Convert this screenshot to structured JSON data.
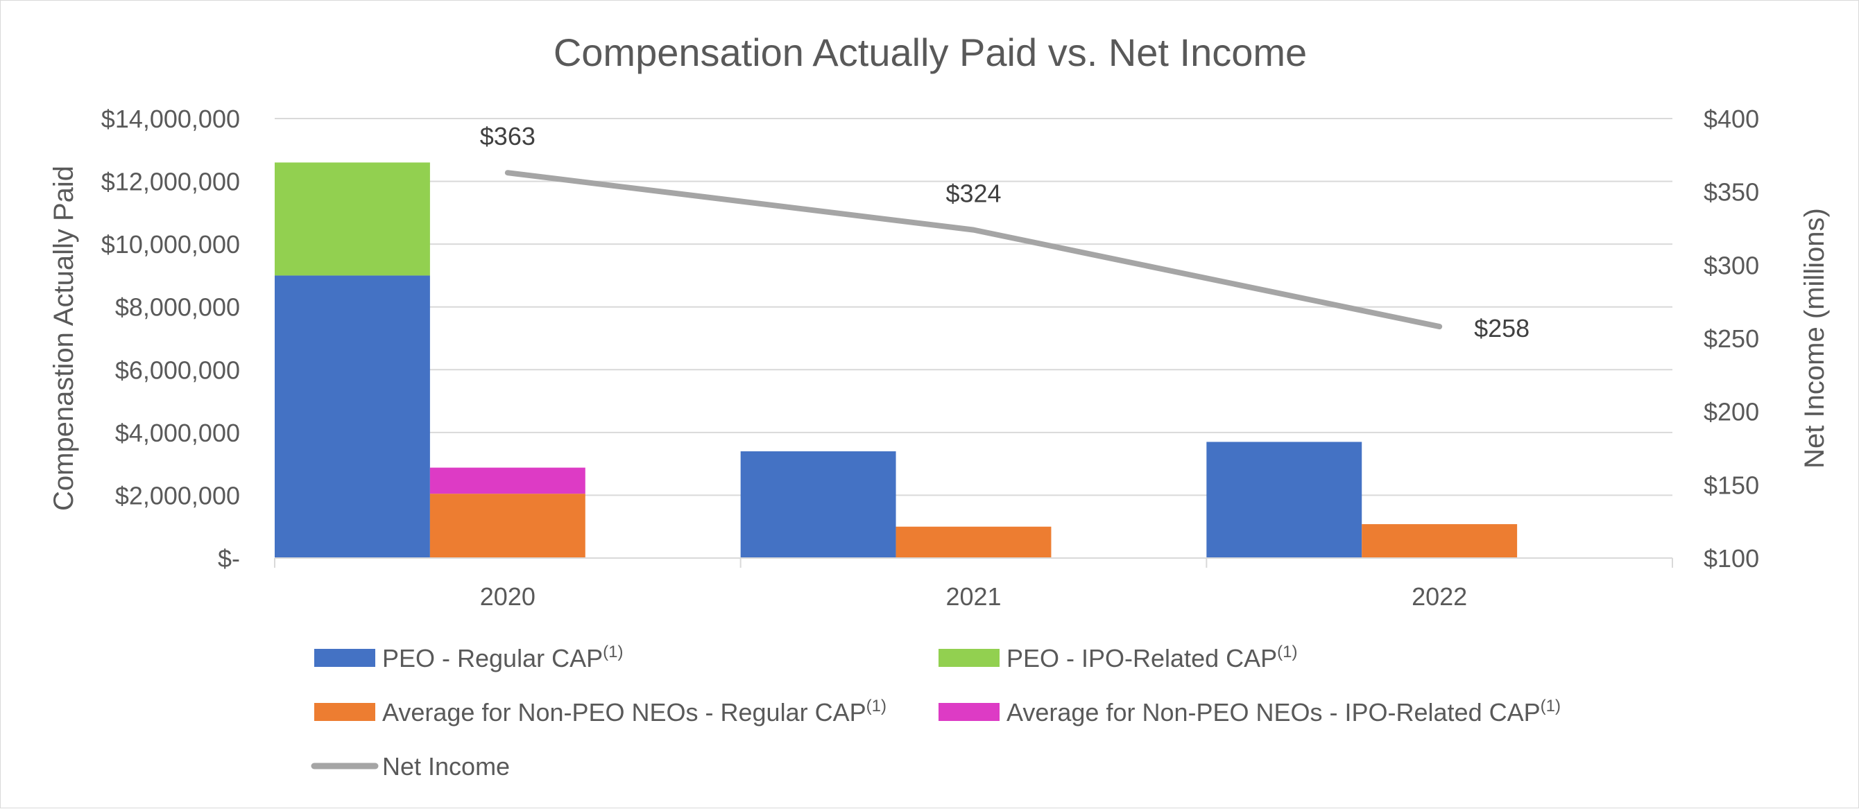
{
  "chart_data": {
    "type": "bar",
    "title": "Compensation Actually Paid vs. Net Income",
    "categories": [
      "2020",
      "2021",
      "2022"
    ],
    "ylabel": "Compenastion Actually Paid",
    "y2label": "Net Income (millions)",
    "ylim": [
      0,
      14000000
    ],
    "y2lim": [
      100,
      400
    ],
    "y_ticks": [
      {
        "value": 0,
        "label": "$-"
      },
      {
        "value": 2000000,
        "label": "$2,000,000"
      },
      {
        "value": 4000000,
        "label": "$4,000,000"
      },
      {
        "value": 6000000,
        "label": "$6,000,000"
      },
      {
        "value": 8000000,
        "label": "$8,000,000"
      },
      {
        "value": 10000000,
        "label": "$10,000,000"
      },
      {
        "value": 12000000,
        "label": "$12,000,000"
      },
      {
        "value": 14000000,
        "label": "$14,000,000"
      }
    ],
    "y2_ticks": [
      {
        "value": 100,
        "label": "$100"
      },
      {
        "value": 150,
        "label": "$150"
      },
      {
        "value": 200,
        "label": "$200"
      },
      {
        "value": 250,
        "label": "$250"
      },
      {
        "value": 300,
        "label": "$300"
      },
      {
        "value": 350,
        "label": "$350"
      },
      {
        "value": 400,
        "label": "$400"
      }
    ],
    "bar_groups": [
      {
        "name": "PEO",
        "segments": [
          {
            "series": "PEO - Regular CAP",
            "color": "#4472c4",
            "values": [
              9000000,
              3400000,
              3700000
            ]
          },
          {
            "series": "PEO - IPO-Related CAP",
            "color": "#92d050",
            "values": [
              3600000,
              0,
              0
            ]
          }
        ]
      },
      {
        "name": "Average for Non-PEO NEOs",
        "segments": [
          {
            "series": "Average for Non-PEO NEOs - Regular CAP",
            "color": "#ed7d31",
            "values": [
              2050000,
              1000000,
              1080000
            ]
          },
          {
            "series": "Average for Non-PEO NEOs - IPO-Related CAP",
            "color": "#dd3bc5",
            "values": [
              830000,
              0,
              0
            ]
          }
        ]
      }
    ],
    "line_series": {
      "name": "Net Income",
      "axis": "secondary",
      "color": "#a5a5a5",
      "values": [
        363,
        324,
        258
      ],
      "data_labels": [
        "$363",
        "$324",
        "$258"
      ]
    },
    "legend": {
      "position": "bottom",
      "items": [
        {
          "label": "PEO - Regular CAP",
          "sup": "(1)",
          "color": "#4472c4",
          "kind": "bar"
        },
        {
          "label": "PEO - IPO-Related CAP",
          "sup": "(1)",
          "color": "#92d050",
          "kind": "bar"
        },
        {
          "label": "Average for Non-PEO NEOs - Regular CAP",
          "sup": "(1)",
          "color": "#ed7d31",
          "kind": "bar"
        },
        {
          "label": "Average for Non-PEO NEOs - IPO-Related CAP",
          "sup": "(1)",
          "color": "#dd3bc5",
          "kind": "bar"
        },
        {
          "label": "Net Income",
          "sup": "",
          "color": "#a5a5a5",
          "kind": "line"
        }
      ]
    },
    "grid": true
  }
}
